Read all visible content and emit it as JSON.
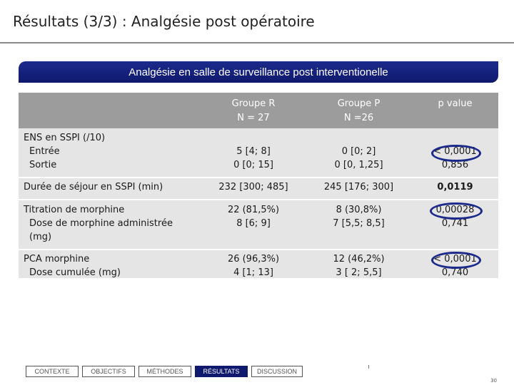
{
  "title": "Résultats (3/3) : Analgésie post opératoire",
  "banner": "Analgésie en salle de surveillance post interventionelle",
  "header": {
    "group_r": "Groupe R",
    "n_r": "N = 27",
    "group_p": "Groupe P",
    "n_p": "N =26",
    "pvalue": "p value"
  },
  "rows": {
    "ens": {
      "label": "ENS en SSPI (/10)",
      "sub1": "Entrée",
      "sub2": "Sortie",
      "r1": "5 [4; 8]",
      "r2": "0 [0; 15]",
      "p1": "0 [0; 2]",
      "p2": "0 [0, 1,25]",
      "pv1": "< 0,0001",
      "pv2": "0,856"
    },
    "duree": {
      "label": "Durée de séjour en SSPI (min)",
      "r": "232 [300; 485]",
      "p": "245 [176; 300]",
      "pv": "0,0119"
    },
    "titration": {
      "label": "Titration de morphine",
      "sub1": "Dose de morphine administrée",
      "sub2": "(mg)",
      "r1": "22 (81,5%)",
      "r2": "8 [6; 9]",
      "p1": "8 (30,8%)",
      "p2": "7 [5,5; 8,5]",
      "pv1": "0,00028",
      "pv2": "0,741"
    },
    "pca": {
      "label": "PCA morphine",
      "sub1": "Dose cumulée (mg)",
      "r1": "26 (96,3%)",
      "r2": "4 [1; 13]",
      "p1": "12 (46,2%)",
      "p2": "3 [ 2; 5,5]",
      "pv1": "< 0,0001",
      "pv2": "0,740"
    }
  },
  "nav": [
    "CONTEXTE",
    "OBJECTIFS",
    "MÉTHODES",
    "RÉSULTATS",
    "DISCUSSION"
  ],
  "page_number": "30"
}
